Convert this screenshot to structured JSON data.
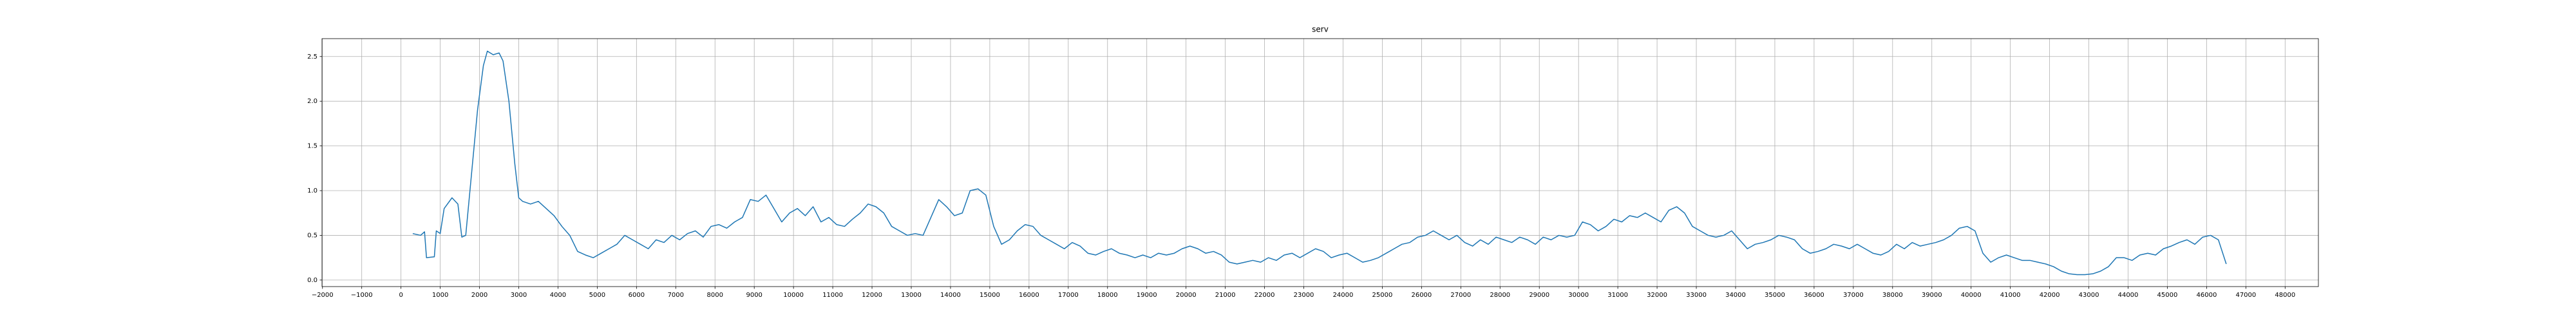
{
  "chart_data": {
    "type": "line",
    "title": "serv",
    "color": "#1f77b4",
    "grid": true,
    "xlim": [
      -2012,
      48848
    ],
    "ylim": [
      -0.073,
      2.7
    ],
    "xticks": [
      {
        "value": -2000,
        "label": "−2000"
      },
      {
        "value": -1000,
        "label": "−1000"
      },
      0,
      1000,
      2000,
      3000,
      4000,
      5000,
      6000,
      7000,
      8000,
      9000,
      10000,
      11000,
      12000,
      13000,
      14000,
      15000,
      16000,
      17000,
      18000,
      19000,
      20000,
      21000,
      22000,
      23000,
      24000,
      25000,
      26000,
      27000,
      28000,
      29000,
      30000,
      31000,
      32000,
      33000,
      34000,
      35000,
      36000,
      37000,
      38000,
      39000,
      40000,
      41000,
      42000,
      43000,
      44000,
      45000,
      46000,
      47000,
      48000
    ],
    "yticks": [
      {
        "value": 0,
        "label": "0.0"
      },
      0.5,
      {
        "value": 1,
        "label": "1.0"
      },
      1.5,
      {
        "value": 2,
        "label": "2.0"
      },
      2.5
    ],
    "x": [
      300,
      500,
      600,
      650,
      850,
      900,
      1000,
      1100,
      1300,
      1450,
      1550,
      1650,
      1800,
      1950,
      2100,
      2200,
      2350,
      2500,
      2600,
      2750,
      2900,
      3000,
      3100,
      3300,
      3500,
      3700,
      3900,
      4100,
      4300,
      4500,
      4700,
      4900,
      5100,
      5300,
      5500,
      5700,
      5900,
      6100,
      6300,
      6500,
      6700,
      6900,
      7100,
      7300,
      7500,
      7700,
      7900,
      8100,
      8300,
      8500,
      8700,
      8900,
      9100,
      9300,
      9500,
      9700,
      9900,
      10100,
      10300,
      10500,
      10700,
      10900,
      11100,
      11300,
      11500,
      11700,
      11900,
      12100,
      12300,
      12500,
      12700,
      12900,
      13100,
      13300,
      13500,
      13700,
      13900,
      14100,
      14300,
      14500,
      14700,
      14900,
      15100,
      15300,
      15500,
      15700,
      15900,
      16100,
      16300,
      16500,
      16700,
      16900,
      17100,
      17300,
      17500,
      17700,
      17900,
      18100,
      18300,
      18500,
      18700,
      18900,
      19100,
      19300,
      19500,
      19700,
      19900,
      20100,
      20300,
      20500,
      20700,
      20900,
      21100,
      21300,
      21500,
      21700,
      21900,
      22100,
      22300,
      22500,
      22700,
      22900,
      23100,
      23300,
      23500,
      23700,
      23900,
      24100,
      24300,
      24500,
      24700,
      24900,
      25100,
      25300,
      25500,
      25700,
      25900,
      26100,
      26300,
      26500,
      26700,
      26900,
      27100,
      27300,
      27500,
      27700,
      27900,
      28100,
      28300,
      28500,
      28700,
      28900,
      29100,
      29300,
      29500,
      29700,
      29900,
      30100,
      30300,
      30500,
      30700,
      30900,
      31100,
      31300,
      31500,
      31700,
      31900,
      32100,
      32300,
      32500,
      32700,
      32900,
      33100,
      33300,
      33500,
      33700,
      33900,
      34100,
      34300,
      34500,
      34700,
      34900,
      35100,
      35300,
      35500,
      35700,
      35900,
      36100,
      36300,
      36500,
      36700,
      36900,
      37100,
      37300,
      37500,
      37700,
      37900,
      38100,
      38300,
      38500,
      38700,
      38900,
      39100,
      39300,
      39500,
      39700,
      39900,
      40100,
      40300,
      40500,
      40700,
      40900,
      41100,
      41300,
      41500,
      41700,
      41900,
      42100,
      42300,
      42500,
      42700,
      42900,
      43100,
      43300,
      43500,
      43700,
      43900,
      44100,
      44300,
      44500,
      44700,
      44900,
      45100,
      45300,
      45500,
      45700,
      45900,
      46100,
      46300,
      46500
    ],
    "values": [
      0.52,
      0.5,
      0.54,
      0.25,
      0.26,
      0.55,
      0.52,
      0.8,
      0.92,
      0.85,
      0.48,
      0.5,
      1.2,
      1.9,
      2.4,
      2.56,
      2.52,
      2.54,
      2.45,
      2.0,
      1.3,
      0.92,
      0.88,
      0.85,
      0.88,
      0.8,
      0.72,
      0.6,
      0.5,
      0.32,
      0.28,
      0.25,
      0.3,
      0.35,
      0.4,
      0.5,
      0.45,
      0.4,
      0.35,
      0.45,
      0.42,
      0.5,
      0.45,
      0.52,
      0.55,
      0.48,
      0.6,
      0.62,
      0.58,
      0.65,
      0.7,
      0.9,
      0.88,
      0.95,
      0.8,
      0.65,
      0.75,
      0.8,
      0.72,
      0.82,
      0.65,
      0.7,
      0.62,
      0.6,
      0.68,
      0.75,
      0.85,
      0.82,
      0.75,
      0.6,
      0.55,
      0.5,
      0.52,
      0.5,
      0.7,
      0.9,
      0.82,
      0.72,
      0.75,
      1.0,
      1.02,
      0.95,
      0.6,
      0.4,
      0.45,
      0.55,
      0.62,
      0.6,
      0.5,
      0.45,
      0.4,
      0.35,
      0.42,
      0.38,
      0.3,
      0.28,
      0.32,
      0.35,
      0.3,
      0.28,
      0.25,
      0.28,
      0.25,
      0.3,
      0.28,
      0.3,
      0.35,
      0.38,
      0.35,
      0.3,
      0.32,
      0.28,
      0.2,
      0.18,
      0.2,
      0.22,
      0.2,
      0.25,
      0.22,
      0.28,
      0.3,
      0.25,
      0.3,
      0.35,
      0.32,
      0.25,
      0.28,
      0.3,
      0.25,
      0.2,
      0.22,
      0.25,
      0.3,
      0.35,
      0.4,
      0.42,
      0.48,
      0.5,
      0.55,
      0.5,
      0.45,
      0.5,
      0.42,
      0.38,
      0.45,
      0.4,
      0.48,
      0.45,
      0.42,
      0.48,
      0.45,
      0.4,
      0.48,
      0.45,
      0.5,
      0.48,
      0.5,
      0.65,
      0.62,
      0.55,
      0.6,
      0.68,
      0.65,
      0.72,
      0.7,
      0.75,
      0.7,
      0.65,
      0.78,
      0.82,
      0.75,
      0.6,
      0.55,
      0.5,
      0.48,
      0.5,
      0.55,
      0.45,
      0.35,
      0.4,
      0.42,
      0.45,
      0.5,
      0.48,
      0.45,
      0.35,
      0.3,
      0.32,
      0.35,
      0.4,
      0.38,
      0.35,
      0.4,
      0.35,
      0.3,
      0.28,
      0.32,
      0.4,
      0.35,
      0.42,
      0.38,
      0.4,
      0.42,
      0.45,
      0.5,
      0.58,
      0.6,
      0.55,
      0.3,
      0.2,
      0.25,
      0.28,
      0.25,
      0.22,
      0.22,
      0.2,
      0.18,
      0.15,
      0.1,
      0.07,
      0.06,
      0.06,
      0.07,
      0.1,
      0.15,
      0.25,
      0.25,
      0.22,
      0.28,
      0.3,
      0.28,
      0.35,
      0.38,
      0.42,
      0.45,
      0.4,
      0.48,
      0.5,
      0.45,
      0.18
    ]
  }
}
